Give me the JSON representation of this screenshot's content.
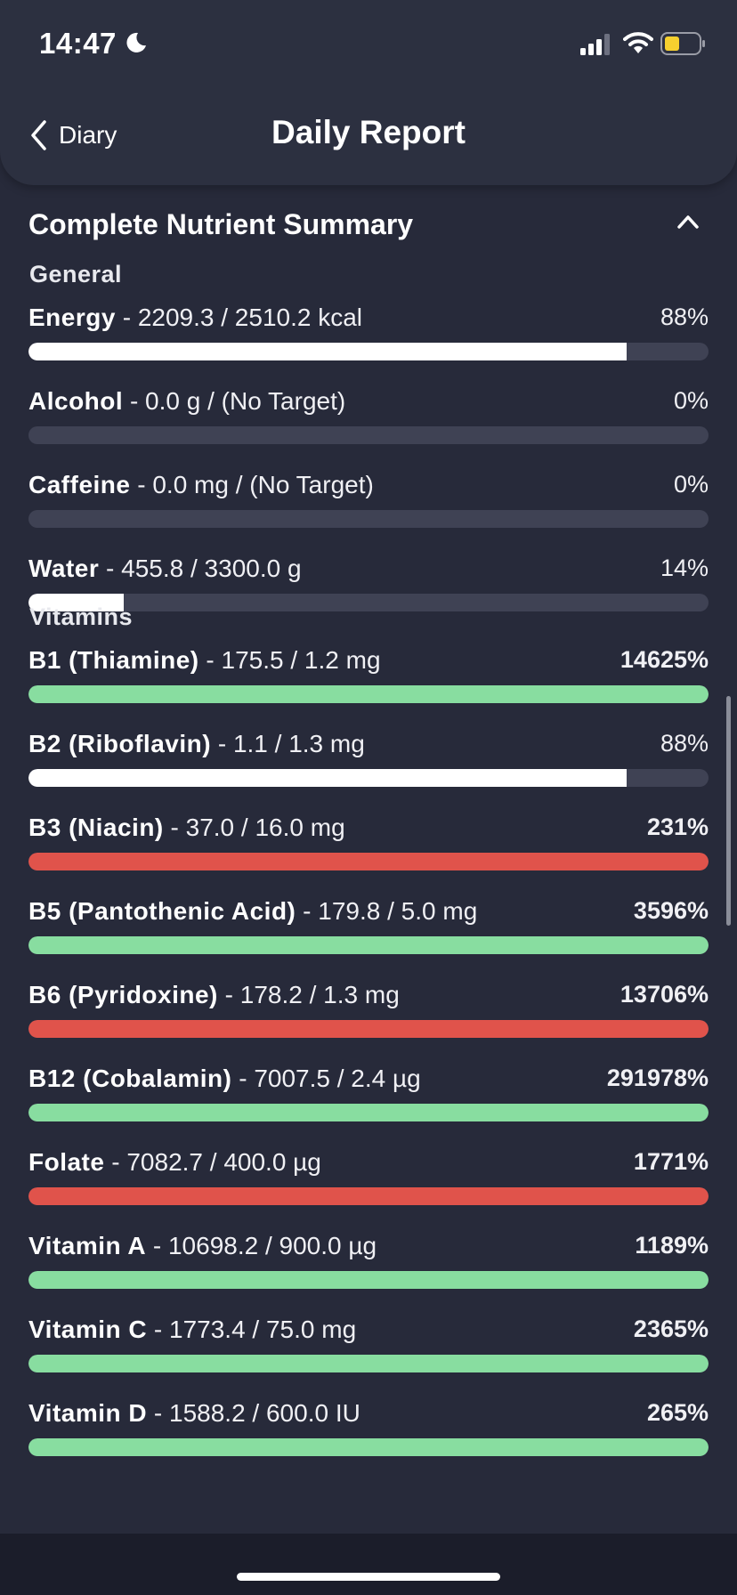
{
  "status_bar": {
    "time": "14:47"
  },
  "header": {
    "back_label": "Diary",
    "title": "Daily Report"
  },
  "summary": {
    "title": "Complete Nutrient Summary",
    "groups": [
      {
        "label": "General",
        "items": [
          {
            "name": "Energy",
            "detail": " - 2209.3 / 2510.2 kcal",
            "percent": "88%",
            "fraction": 0.88,
            "bar": "white",
            "bold": false
          },
          {
            "name": "Alcohol",
            "detail": " - 0.0 g / (No Target)",
            "percent": "0%",
            "fraction": 0,
            "bar": "white",
            "bold": false
          },
          {
            "name": "Caffeine",
            "detail": " - 0.0 mg / (No Target)",
            "percent": "0%",
            "fraction": 0,
            "bar": "white",
            "bold": false
          },
          {
            "name": "Water",
            "detail": " - 455.8 / 3300.0 g",
            "percent": "14%",
            "fraction": 0.14,
            "bar": "white",
            "bold": false
          }
        ]
      },
      {
        "label": "Vitamins",
        "items": [
          {
            "name": "B1 (Thiamine)",
            "detail": " - 175.5 / 1.2 mg",
            "percent": "14625%",
            "fraction": 1,
            "bar": "green",
            "bold": true
          },
          {
            "name": "B2 (Riboflavin)",
            "detail": " - 1.1 / 1.3 mg",
            "percent": "88%",
            "fraction": 0.88,
            "bar": "white",
            "bold": false
          },
          {
            "name": "B3 (Niacin)",
            "detail": " - 37.0 / 16.0 mg",
            "percent": "231%",
            "fraction": 1,
            "bar": "red",
            "bold": true
          },
          {
            "name": "B5 (Pantothenic Acid)",
            "detail": " - 179.8 / 5.0 mg",
            "percent": "3596%",
            "fraction": 1,
            "bar": "green",
            "bold": true
          },
          {
            "name": "B6 (Pyridoxine)",
            "detail": " - 178.2 / 1.3 mg",
            "percent": "13706%",
            "fraction": 1,
            "bar": "red",
            "bold": true
          },
          {
            "name": "B12 (Cobalamin)",
            "detail": " - 7007.5 / 2.4 µg",
            "percent": "291978%",
            "fraction": 1,
            "bar": "green",
            "bold": true
          },
          {
            "name": "Folate",
            "detail": " - 7082.7 / 400.0 µg",
            "percent": "1771%",
            "fraction": 1,
            "bar": "red",
            "bold": true
          },
          {
            "name": "Vitamin A",
            "detail": " - 10698.2 / 900.0 µg",
            "percent": "1189%",
            "fraction": 1,
            "bar": "green",
            "bold": true
          },
          {
            "name": "Vitamin C",
            "detail": " - 1773.4 / 75.0 mg",
            "percent": "2365%",
            "fraction": 1,
            "bar": "green",
            "bold": true
          },
          {
            "name": "Vitamin D",
            "detail": " - 1588.2 / 600.0 IU",
            "percent": "265%",
            "fraction": 1,
            "bar": "green",
            "bold": true
          }
        ]
      }
    ]
  },
  "colors": {
    "white": "#ffffff",
    "green": "#88dda0",
    "red": "#e0534b",
    "track": "#3f4254"
  }
}
